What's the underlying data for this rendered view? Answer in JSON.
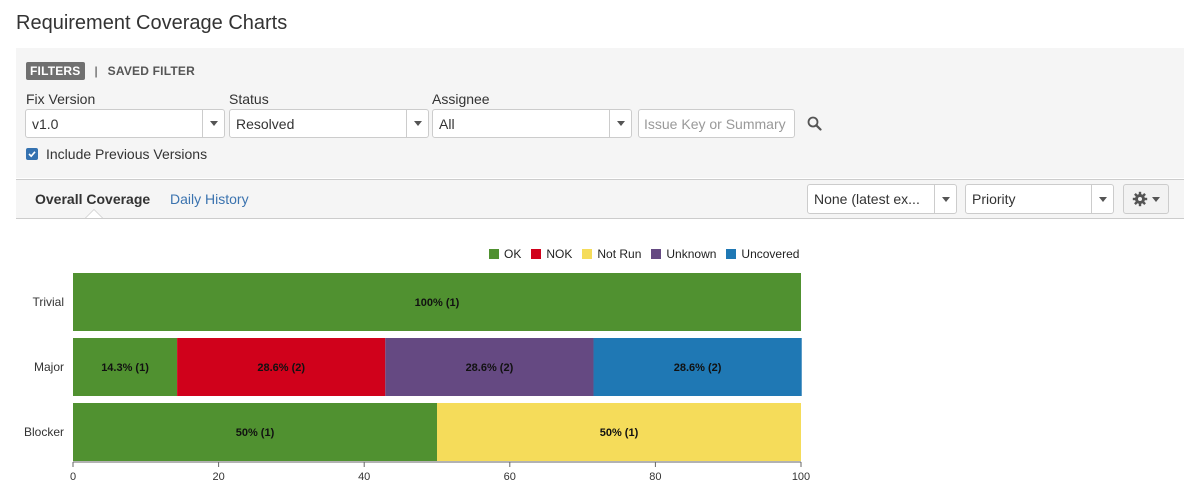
{
  "page": {
    "title": "Requirement Coverage Charts"
  },
  "filters": {
    "tab_filters": "FILTERS",
    "separator": "|",
    "tab_saved": "SAVED FILTER",
    "fix_version": {
      "label": "Fix Version",
      "value": "v1.0"
    },
    "status": {
      "label": "Status",
      "value": "Resolved"
    },
    "assignee": {
      "label": "Assignee",
      "value": "All"
    },
    "search": {
      "placeholder": "Issue Key or Summary"
    },
    "include_previous": {
      "label": "Include Previous Versions",
      "checked": true
    }
  },
  "toolbar": {
    "tab_overall": "Overall Coverage",
    "tab_daily": "Daily History",
    "execution_select": "None (latest ex...",
    "group_select": "Priority",
    "gear_icon": "gear-icon"
  },
  "chart_data": {
    "type": "bar",
    "orientation": "horizontal",
    "stacked": true,
    "categories": [
      "Trivial",
      "Major",
      "Blocker"
    ],
    "series": [
      {
        "name": "OK",
        "color": "#509130",
        "values": [
          100,
          14.3,
          50
        ],
        "labels": [
          "100% (1)",
          "14.3% (1)",
          "50% (1)"
        ]
      },
      {
        "name": "NOK",
        "color": "#d0011b",
        "values": [
          0,
          28.6,
          0
        ],
        "labels": [
          "",
          "28.6% (2)",
          ""
        ]
      },
      {
        "name": "Not Run",
        "color": "#f5dc5a",
        "values": [
          0,
          0,
          50
        ],
        "labels": [
          "",
          "",
          "50% (1)"
        ]
      },
      {
        "name": "Unknown",
        "color": "#654982",
        "values": [
          0,
          28.6,
          0
        ],
        "labels": [
          "",
          "28.6% (2)",
          ""
        ]
      },
      {
        "name": "Uncovered",
        "color": "#1f78b4",
        "values": [
          0,
          28.6,
          0
        ],
        "labels": [
          "",
          "28.6% (2)",
          ""
        ]
      }
    ],
    "xlim": [
      0,
      100
    ],
    "xticks": [
      0,
      20,
      40,
      60,
      80,
      100
    ],
    "legend_position": "top-right"
  }
}
